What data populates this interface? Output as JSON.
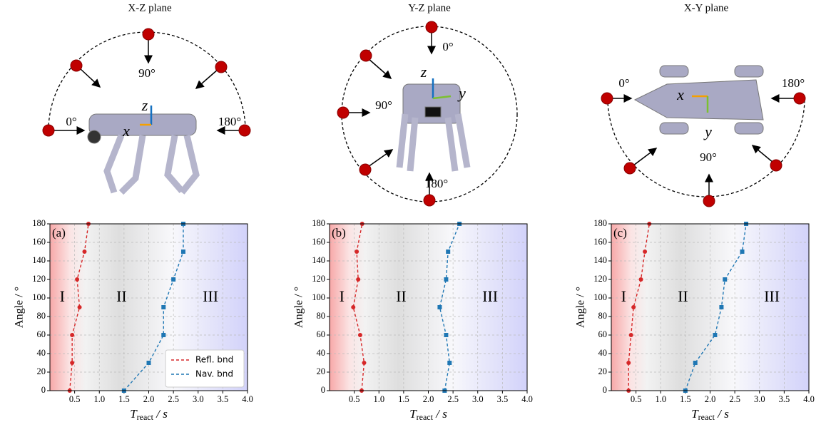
{
  "diagrams": [
    {
      "title": "X-Z plane",
      "labels": [
        "0°",
        "90°",
        "180°",
        "z",
        "x"
      ]
    },
    {
      "title": "Y-Z plane",
      "labels": [
        "0°",
        "90°",
        "180°",
        "z",
        "y"
      ]
    },
    {
      "title": "X-Y plane",
      "labels": [
        "0°",
        "90°",
        "180°",
        "x",
        "y"
      ]
    }
  ],
  "chart_data": [
    {
      "type": "line",
      "panel": "(a)",
      "regions": [
        "I",
        "II",
        "III"
      ],
      "ylabel": "Angle / °",
      "xlabel": "T",
      "xlabel_sub": "react",
      "xlabel_unit": " / s",
      "y": [
        0,
        30,
        60,
        90,
        120,
        150,
        180
      ],
      "series": [
        {
          "name": "Refl. bnd",
          "color": "#d62728",
          "marker": "circle",
          "values": [
            0.4,
            0.45,
            0.45,
            0.6,
            0.55,
            0.7,
            0.78
          ]
        },
        {
          "name": "Nav. bnd",
          "color": "#1f77b4",
          "marker": "square",
          "values": [
            1.5,
            2.0,
            2.3,
            2.3,
            2.5,
            2.7,
            2.7
          ]
        }
      ],
      "legend": "lower right",
      "grid": true,
      "xlim": [
        0,
        4
      ],
      "ylim": [
        0,
        180
      ],
      "xticks": [
        0.5,
        {
          "value": 1,
          "label": "1.0"
        },
        1.5,
        {
          "value": 2,
          "label": "2.0"
        },
        2.5,
        {
          "value": 3,
          "label": "3.0"
        },
        3.5,
        {
          "value": 4,
          "label": "4.0"
        }
      ],
      "yticks": [
        0,
        20,
        40,
        60,
        80,
        100,
        120,
        140,
        160,
        180
      ]
    },
    {
      "type": "line",
      "panel": "(b)",
      "regions": [
        "I",
        "II",
        "III"
      ],
      "ylabel": "Angle / °",
      "xlabel": "T",
      "xlabel_sub": "react",
      "xlabel_unit": " / s",
      "y": [
        0,
        30,
        60,
        90,
        120,
        150,
        180
      ],
      "series": [
        {
          "color": "#d62728",
          "marker": "circle",
          "values": [
            0.65,
            0.7,
            0.62,
            0.48,
            0.58,
            0.55,
            0.66
          ]
        },
        {
          "color": "#1f77b4",
          "marker": "square",
          "values": [
            2.33,
            2.43,
            2.36,
            2.23,
            2.36,
            2.4,
            2.63
          ]
        }
      ],
      "grid": true,
      "xlim": [
        0,
        4
      ],
      "ylim": [
        0,
        180
      ],
      "xticks": [
        0.5,
        {
          "value": 1,
          "label": "1.0"
        },
        1.5,
        {
          "value": 2,
          "label": "2.0"
        },
        2.5,
        {
          "value": 3,
          "label": "3.0"
        },
        3.5,
        {
          "value": 4,
          "label": "4.0"
        }
      ],
      "yticks": [
        0,
        20,
        40,
        60,
        80,
        100,
        120,
        140,
        160,
        180
      ]
    },
    {
      "type": "line",
      "panel": "(c)",
      "regions": [
        "I",
        "II",
        "III"
      ],
      "ylabel": "Angle / °",
      "xlabel": "T",
      "xlabel_sub": "react",
      "xlabel_unit": " / s",
      "y": [
        0,
        30,
        60,
        90,
        120,
        150,
        180
      ],
      "series": [
        {
          "color": "#d62728",
          "marker": "circle",
          "values": [
            0.35,
            0.35,
            0.4,
            0.45,
            0.6,
            0.68,
            0.77
          ]
        },
        {
          "color": "#1f77b4",
          "marker": "square",
          "values": [
            1.5,
            1.7,
            2.1,
            2.23,
            2.3,
            2.65,
            2.73
          ]
        }
      ],
      "grid": true,
      "xlim": [
        0,
        4
      ],
      "ylim": [
        0,
        180
      ],
      "xticks": [
        0.5,
        {
          "value": 1,
          "label": "1.0"
        },
        1.5,
        {
          "value": 2,
          "label": "2.0"
        },
        2.5,
        {
          "value": 3,
          "label": "3.0"
        },
        3.5,
        {
          "value": 4,
          "label": "4.0"
        }
      ],
      "yticks": [
        0,
        20,
        40,
        60,
        80,
        100,
        120,
        140,
        160,
        180
      ]
    }
  ]
}
